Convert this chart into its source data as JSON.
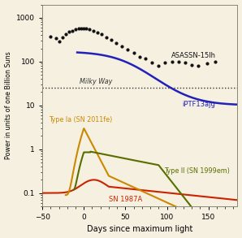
{
  "background_color": "#f5f0e0",
  "xlim": [
    -50,
    185
  ],
  "ylim_log": [
    0.05,
    2000
  ],
  "xlabel": "Days since maximum light",
  "ylabel": "Power in units of one Billion Suns",
  "milky_way_y": 25,
  "milky_way_label": "Milky Way",
  "label_fontsize": 7.0,
  "tick_fontsize": 6.5,
  "asassn_label": "ASASSN-15lh",
  "iptf_label": "iPTF13ajg",
  "type1a_label": "Type Ia (SN 2011fe)",
  "type2_label": "Type II (SN 1999em)",
  "sn1987a_label": "SN 1987A",
  "asassn_color": "#111111",
  "iptf_color": "#2222bb",
  "type1a_color": "#cc8800",
  "type2_color": "#5a6e00",
  "sn1987a_color": "#cc2200",
  "asassn_scatter_x": [
    -40,
    -34,
    -30,
    -26,
    -22,
    -18,
    -14,
    -10,
    -6,
    -3,
    0,
    3,
    7,
    11,
    16,
    21,
    27,
    33,
    39,
    46,
    53,
    60,
    67,
    74,
    82,
    90,
    98,
    106,
    114,
    122,
    130,
    138,
    148,
    158
  ],
  "asassn_scatter_y": [
    370,
    340,
    290,
    350,
    420,
    470,
    510,
    540,
    560,
    575,
    580,
    565,
    545,
    510,
    465,
    415,
    360,
    310,
    265,
    220,
    185,
    155,
    130,
    115,
    95,
    80,
    95,
    100,
    100,
    95,
    85,
    80,
    90,
    100
  ]
}
